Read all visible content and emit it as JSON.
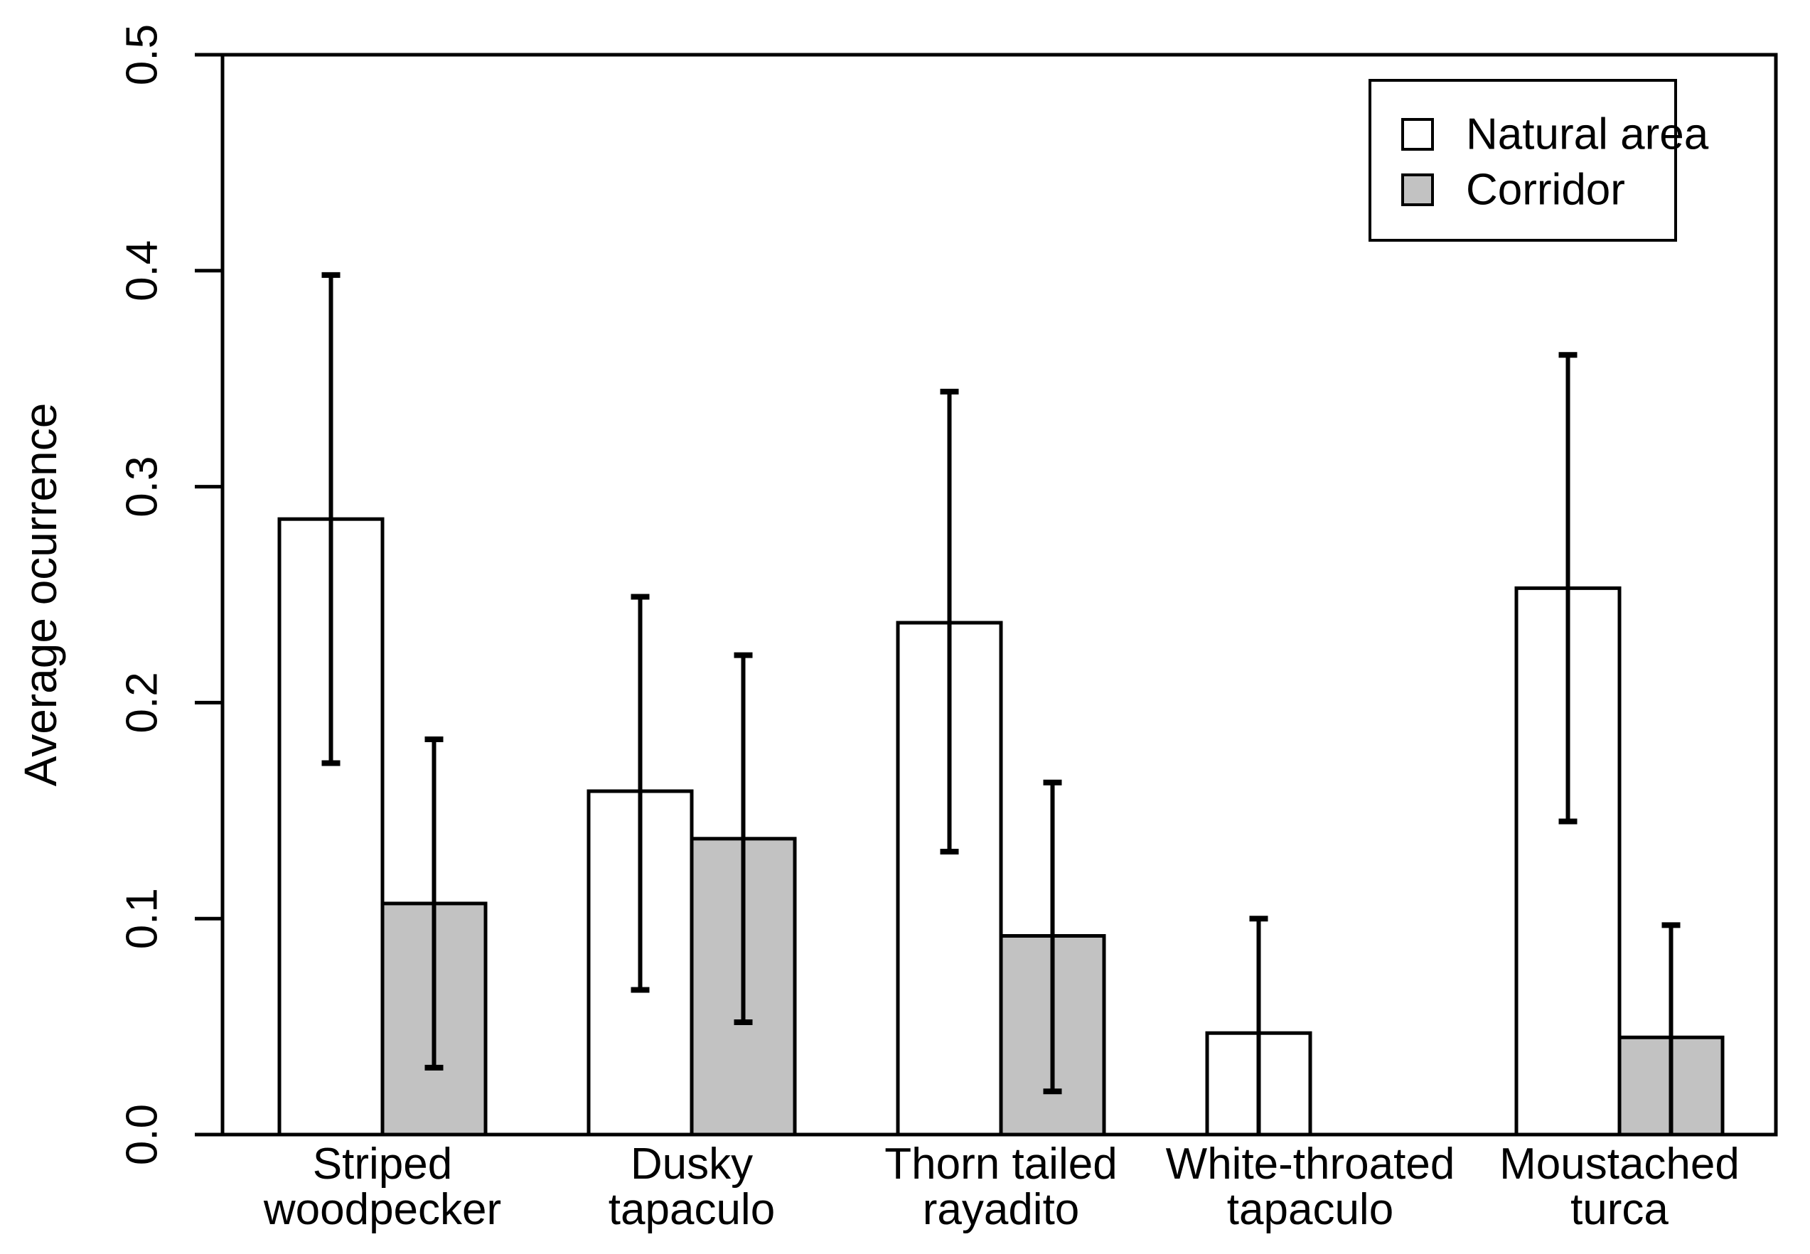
{
  "figure": {
    "background": "#ffffff",
    "foreground": "#000000"
  },
  "chart_data": {
    "type": "bar",
    "title": "",
    "xlabel": "",
    "ylabel": "Average ocurrence",
    "ylim": [
      0,
      0.5
    ],
    "ytick_labels": [
      "0.0",
      "0.1",
      "0.2",
      "0.3",
      "0.4",
      "0.5"
    ],
    "ytick_values": [
      0.0,
      0.1,
      0.2,
      0.3,
      0.4,
      0.5
    ],
    "grid": false,
    "legend_position": "top-right",
    "categories": [
      "Striped woodpecker",
      "Dusky tapaculo",
      "Thorn tailed rayadito",
      "White-throated tapaculo",
      "Moustached turca"
    ],
    "category_lines": [
      [
        "Striped",
        "woodpecker"
      ],
      [
        "Dusky",
        "tapaculo"
      ],
      [
        "Thorn tailed",
        "rayadito"
      ],
      [
        "White-throated",
        "tapaculo"
      ],
      [
        "Moustached",
        "turca"
      ]
    ],
    "series": [
      {
        "name": "Natural area",
        "fill": "#ffffff",
        "stroke": "#000000",
        "values": [
          0.285,
          0.159,
          0.237,
          0.047,
          0.253
        ],
        "err_low": [
          0.172,
          0.067,
          0.131,
          null,
          0.145
        ],
        "err_high": [
          0.398,
          0.249,
          0.344,
          0.1,
          0.361
        ]
      },
      {
        "name": "Corridor",
        "fill": "#c2c2c2",
        "stroke": "#000000",
        "values": [
          0.107,
          0.137,
          0.092,
          null,
          0.045
        ],
        "err_low": [
          0.031,
          0.052,
          0.02,
          null,
          null
        ],
        "err_high": [
          0.183,
          0.222,
          0.163,
          null,
          0.097
        ]
      }
    ]
  }
}
